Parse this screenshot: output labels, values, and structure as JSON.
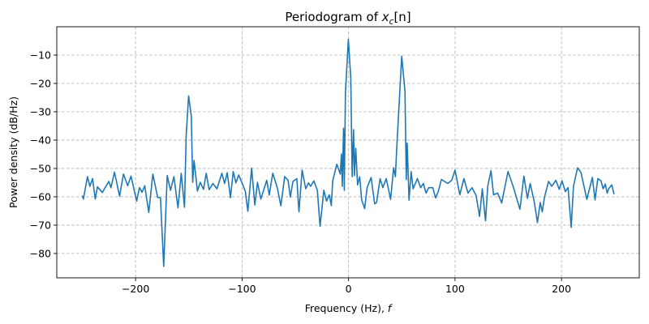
{
  "chart_data": {
    "type": "line",
    "title": {
      "prefix": "Periodogram of ",
      "var": "x",
      "sub": "c",
      "suffix": "[n]"
    },
    "xlabel": {
      "text": "Frequency (Hz), ",
      "var": "f"
    },
    "ylabel": "Power density (dB/Hz)",
    "xlim": [
      -274,
      273
    ],
    "ylim": [
      -88.6,
      0
    ],
    "xticks": [
      -200,
      -100,
      0,
      100,
      200
    ],
    "xtick_labels": [
      "−200",
      "−100",
      "0",
      "100",
      "200"
    ],
    "yticks": [
      -10,
      -20,
      -30,
      -40,
      -50,
      -60,
      -70,
      -80
    ],
    "ytick_labels": [
      "−10",
      "−20",
      "−30",
      "−40",
      "−50",
      "−60",
      "−70",
      "−80"
    ],
    "grid": true,
    "line_color": "#1f77b4",
    "series": [
      {
        "x": [
          -250,
          -249,
          -245.2,
          -242.9,
          -240.4,
          -237.9,
          -235.8,
          -231.2,
          -228.2,
          -225.1,
          -223.1,
          -219.8,
          -215,
          -211.4,
          -207.4,
          -204.3,
          -199,
          -196.4,
          -193.9,
          -191.4,
          -187.6,
          -183.8,
          -179.2,
          -176.6,
          -173.6,
          -170.3,
          -167.2,
          -164,
          -160.2,
          -157.1,
          -155.6,
          -154.1,
          -152.5,
          -150.2,
          -147.7,
          -146.4,
          -145.1,
          -141.9,
          -139.3,
          -136.2,
          -133.7,
          -130.9,
          -127.4,
          -123.6,
          -119,
          -116.4,
          -113.9,
          -110.9,
          -108.3,
          -105.8,
          -103.2,
          -100,
          -96.9,
          -94.6,
          -91,
          -88,
          -85.5,
          -82.4,
          -76.8,
          -74.5,
          -71.2,
          -66.9,
          -63.6,
          -60,
          -56.8,
          -54.7,
          -52.2,
          -48.6,
          -46.6,
          -43.6,
          -40.2,
          -37.7,
          -35.7,
          -32.6,
          -29.3,
          -26.8,
          -23.2,
          -20.7,
          -18.1,
          -16.2,
          -14.9,
          -11,
          -7.8,
          -6.7,
          -5.9,
          -4.7,
          -4,
          -2.9,
          -0.2,
          2.1,
          3.4,
          4.7,
          5.5,
          6.7,
          8.5,
          10.5,
          12.3,
          15.1,
          17.4,
          21.2,
          24.5,
          26.3,
          29.6,
          32.2,
          35.4,
          39.5,
          42.3,
          44,
          45.3,
          49.9,
          53,
          54.2,
          55,
          56.8,
          58.8,
          60.6,
          64.6,
          67.7,
          70.2,
          72.8,
          75.3,
          79.1,
          81.7,
          84.2,
          87.2,
          93.1,
          96.9,
          100,
          104.5,
          108.3,
          112.2,
          116,
          119.8,
          123,
          125.6,
          128.6,
          130.7,
          133.7,
          136.2,
          140,
          143.8,
          149.7,
          154.5,
          160.9,
          164.7,
          168,
          170.5,
          174.3,
          177.4,
          180,
          181.9,
          184,
          187.8,
          190.9,
          194.7,
          197.9,
          200.5,
          203.6,
          206.1,
          209.1,
          211.2,
          215,
          218.3,
          223.8,
          229,
          231.5,
          234.1,
          237.1,
          239.1,
          241.1,
          242.9,
          244.2,
          247.2,
          249.3
        ],
        "y": [
          -59.6,
          -60.8,
          -52.9,
          -56.3,
          -53.6,
          -60.8,
          -56.5,
          -58.5,
          -56.5,
          -54.6,
          -56.8,
          -51.3,
          -59.8,
          -52,
          -56.1,
          -52.7,
          -61.5,
          -56.8,
          -58.4,
          -56.1,
          -65.5,
          -52,
          -60.3,
          -60.3,
          -84.6,
          -52.5,
          -57.7,
          -52.9,
          -63.9,
          -51.7,
          -57.7,
          -63.7,
          -38.2,
          -24.4,
          -31.5,
          -54.9,
          -47.2,
          -58,
          -54.9,
          -57.4,
          -51.7,
          -57.5,
          -55.3,
          -57.2,
          -51.7,
          -55.3,
          -51.5,
          -60.3,
          -51.1,
          -55.1,
          -52.3,
          -55.1,
          -58.2,
          -65.1,
          -49.9,
          -62.9,
          -54.9,
          -60.8,
          -54.2,
          -59.4,
          -51.7,
          -56.8,
          -63.2,
          -52.9,
          -54.2,
          -60.1,
          -54.6,
          -53.6,
          -65.3,
          -50.6,
          -57.2,
          -55.1,
          -56.3,
          -54.4,
          -57.7,
          -70.4,
          -57.7,
          -61.5,
          -59.3,
          -63.1,
          -54.4,
          -48.5,
          -52,
          -44.9,
          -56.3,
          -35.8,
          -57.7,
          -23.4,
          -4.4,
          -18.2,
          -52.9,
          -36.3,
          -52.5,
          -42.9,
          -55.8,
          -52.9,
          -61.1,
          -64.2,
          -56.8,
          -53.2,
          -62.5,
          -62,
          -53.6,
          -56.8,
          -53.6,
          -60.9,
          -49.8,
          -52.9,
          -42.5,
          -10.4,
          -22.9,
          -53.9,
          -41.1,
          -61.2,
          -51.1,
          -57.2,
          -53.6,
          -56.8,
          -55.3,
          -58.7,
          -56.8,
          -56.8,
          -60.4,
          -58.2,
          -53.9,
          -55.3,
          -54.2,
          -50.6,
          -59.3,
          -53.6,
          -58.7,
          -56.8,
          -59.6,
          -66.9,
          -57.2,
          -68.5,
          -56.3,
          -50.8,
          -59.3,
          -58.7,
          -62.2,
          -51.1,
          -56.3,
          -64.4,
          -52.7,
          -60.6,
          -55.3,
          -61.5,
          -69.1,
          -62,
          -65.3,
          -60.1,
          -54.6,
          -56.3,
          -54.2,
          -57.4,
          -54.4,
          -58.2,
          -56.8,
          -70.8,
          -56.3,
          -49.8,
          -51.5,
          -60.9,
          -53.2,
          -61.1,
          -53.6,
          -54.4,
          -57.2,
          -55.5,
          -58.7,
          -57.2,
          -55.8,
          -59.1
        ]
      }
    ]
  }
}
